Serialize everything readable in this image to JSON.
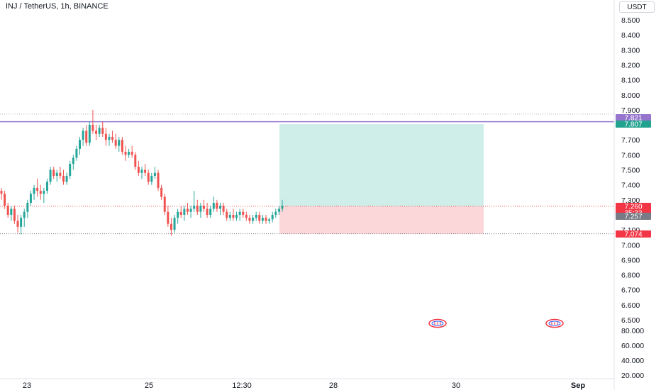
{
  "header": {
    "symbol_title": "INJ / TetherUS, 1h, BINANCE",
    "currency_label": "USDT"
  },
  "colors": {
    "up": "#26a69a",
    "down": "#ef5350",
    "profit_zone": "#cfeee9",
    "loss_zone": "#fcd7d9",
    "purple_line": "#9575cd",
    "teal_label": "#22a38f",
    "red_label": "#f23645",
    "gray_label": "#787b86"
  },
  "price_scale": {
    "ticks": [
      "8.500",
      "8.400",
      "8.300",
      "8.200",
      "8.100",
      "8.000",
      "7.900",
      "7.800",
      "7.700",
      "7.600",
      "7.500",
      "7.400",
      "7.300",
      "7.100",
      "7.000",
      "6.900",
      "6.800",
      "6.700",
      "6.600",
      "6.500"
    ]
  },
  "volume_scale": {
    "ticks": [
      "80.000",
      "60.000",
      "40.000",
      "20.000"
    ]
  },
  "time_axis": {
    "labels": [
      "23",
      "25",
      "12:30",
      "28",
      "30",
      "Sep"
    ]
  },
  "price_labels": {
    "purple_level": "7.821",
    "take_profit": "7.807",
    "last_price": "7.260",
    "countdown": "35:33",
    "entry": "7.257",
    "stop_loss": "7.074"
  },
  "horizontal_levels": {
    "top_dotted": 7.9,
    "purple": 7.821,
    "take_profit": 7.807,
    "entry": 7.257,
    "stop_loss": 7.074
  },
  "event_icons": [
    "earnings-event-icon",
    "earnings-event-icon"
  ],
  "chart_data": {
    "type": "candlestick",
    "interval": "1h",
    "ylim": [
      6.46,
      8.56
    ],
    "candles": [
      [
        7.36,
        7.38,
        7.3,
        7.34
      ],
      [
        7.34,
        7.36,
        7.24,
        7.26
      ],
      [
        7.26,
        7.28,
        7.18,
        7.2
      ],
      [
        7.2,
        7.26,
        7.16,
        7.24
      ],
      [
        7.24,
        7.26,
        7.14,
        7.16
      ],
      [
        7.16,
        7.2,
        7.08,
        7.12
      ],
      [
        7.12,
        7.2,
        7.07,
        7.18
      ],
      [
        7.18,
        7.24,
        7.12,
        7.22
      ],
      [
        7.22,
        7.3,
        7.18,
        7.28
      ],
      [
        7.28,
        7.36,
        7.26,
        7.34
      ],
      [
        7.34,
        7.4,
        7.3,
        7.38
      ],
      [
        7.38,
        7.44,
        7.32,
        7.36
      ],
      [
        7.36,
        7.4,
        7.3,
        7.34
      ],
      [
        7.34,
        7.38,
        7.28,
        7.36
      ],
      [
        7.36,
        7.44,
        7.34,
        7.42
      ],
      [
        7.42,
        7.52,
        7.4,
        7.5
      ],
      [
        7.5,
        7.52,
        7.44,
        7.46
      ],
      [
        7.46,
        7.5,
        7.42,
        7.48
      ],
      [
        7.48,
        7.52,
        7.44,
        7.46
      ],
      [
        7.46,
        7.5,
        7.4,
        7.42
      ],
      [
        7.42,
        7.48,
        7.4,
        7.46
      ],
      [
        7.46,
        7.56,
        7.44,
        7.54
      ],
      [
        7.54,
        7.6,
        7.5,
        7.58
      ],
      [
        7.58,
        7.66,
        7.56,
        7.64
      ],
      [
        7.64,
        7.72,
        7.6,
        7.7
      ],
      [
        7.7,
        7.78,
        7.66,
        7.76
      ],
      [
        7.76,
        7.8,
        7.66,
        7.68
      ],
      [
        7.68,
        7.82,
        7.66,
        7.8
      ],
      [
        7.8,
        7.9,
        7.74,
        7.76
      ],
      [
        7.76,
        7.8,
        7.7,
        7.74
      ],
      [
        7.74,
        7.8,
        7.72,
        7.78
      ],
      [
        7.78,
        7.82,
        7.72,
        7.74
      ],
      [
        7.74,
        7.78,
        7.66,
        7.7
      ],
      [
        7.7,
        7.74,
        7.66,
        7.72
      ],
      [
        7.72,
        7.76,
        7.68,
        7.7
      ],
      [
        7.7,
        7.74,
        7.64,
        7.66
      ],
      [
        7.66,
        7.72,
        7.62,
        7.7
      ],
      [
        7.7,
        7.72,
        7.6,
        7.62
      ],
      [
        7.62,
        7.66,
        7.56,
        7.6
      ],
      [
        7.6,
        7.64,
        7.58,
        7.62
      ],
      [
        7.62,
        7.66,
        7.58,
        7.6
      ],
      [
        7.6,
        7.62,
        7.5,
        7.52
      ],
      [
        7.52,
        7.56,
        7.46,
        7.48
      ],
      [
        7.48,
        7.52,
        7.44,
        7.5
      ],
      [
        7.5,
        7.54,
        7.46,
        7.48
      ],
      [
        7.48,
        7.5,
        7.4,
        7.42
      ],
      [
        7.42,
        7.48,
        7.4,
        7.46
      ],
      [
        7.46,
        7.52,
        7.44,
        7.48
      ],
      [
        7.48,
        7.5,
        7.36,
        7.38
      ],
      [
        7.38,
        7.4,
        7.3,
        7.32
      ],
      [
        7.32,
        7.34,
        7.2,
        7.22
      ],
      [
        7.22,
        7.26,
        7.12,
        7.14
      ],
      [
        7.14,
        7.18,
        7.06,
        7.1
      ],
      [
        7.1,
        7.2,
        7.08,
        7.18
      ],
      [
        7.18,
        7.24,
        7.14,
        7.22
      ],
      [
        7.22,
        7.26,
        7.18,
        7.2
      ],
      [
        7.2,
        7.26,
        7.16,
        7.24
      ],
      [
        7.24,
        7.28,
        7.2,
        7.22
      ],
      [
        7.22,
        7.26,
        7.18,
        7.24
      ],
      [
        7.24,
        7.36,
        7.22,
        7.26
      ],
      [
        7.26,
        7.3,
        7.2,
        7.22
      ],
      [
        7.22,
        7.28,
        7.18,
        7.26
      ],
      [
        7.26,
        7.3,
        7.22,
        7.24
      ],
      [
        7.24,
        7.28,
        7.18,
        7.2
      ],
      [
        7.2,
        7.26,
        7.18,
        7.24
      ],
      [
        7.24,
        7.32,
        7.22,
        7.28
      ],
      [
        7.28,
        7.3,
        7.22,
        7.24
      ],
      [
        7.24,
        7.28,
        7.2,
        7.26
      ],
      [
        7.26,
        7.28,
        7.2,
        7.22
      ],
      [
        7.22,
        7.24,
        7.16,
        7.18
      ],
      [
        7.18,
        7.22,
        7.16,
        7.2
      ],
      [
        7.2,
        7.24,
        7.16,
        7.18
      ],
      [
        7.18,
        7.22,
        7.16,
        7.2
      ],
      [
        7.2,
        7.24,
        7.16,
        7.22
      ],
      [
        7.22,
        7.24,
        7.18,
        7.2
      ],
      [
        7.2,
        7.22,
        7.16,
        7.18
      ],
      [
        7.18,
        7.2,
        7.14,
        7.16
      ],
      [
        7.16,
        7.2,
        7.14,
        7.18
      ],
      [
        7.18,
        7.22,
        7.16,
        7.2
      ],
      [
        7.2,
        7.22,
        7.14,
        7.16
      ],
      [
        7.16,
        7.2,
        7.14,
        7.18
      ],
      [
        7.18,
        7.2,
        7.14,
        7.16
      ],
      [
        7.16,
        7.18,
        7.14,
        7.17
      ],
      [
        7.17,
        7.22,
        7.15,
        7.2
      ],
      [
        7.2,
        7.24,
        7.18,
        7.22
      ],
      [
        7.22,
        7.26,
        7.2,
        7.24
      ],
      [
        7.24,
        7.3,
        7.22,
        7.26
      ]
    ],
    "volume_ylim": [
      10,
      90
    ]
  }
}
